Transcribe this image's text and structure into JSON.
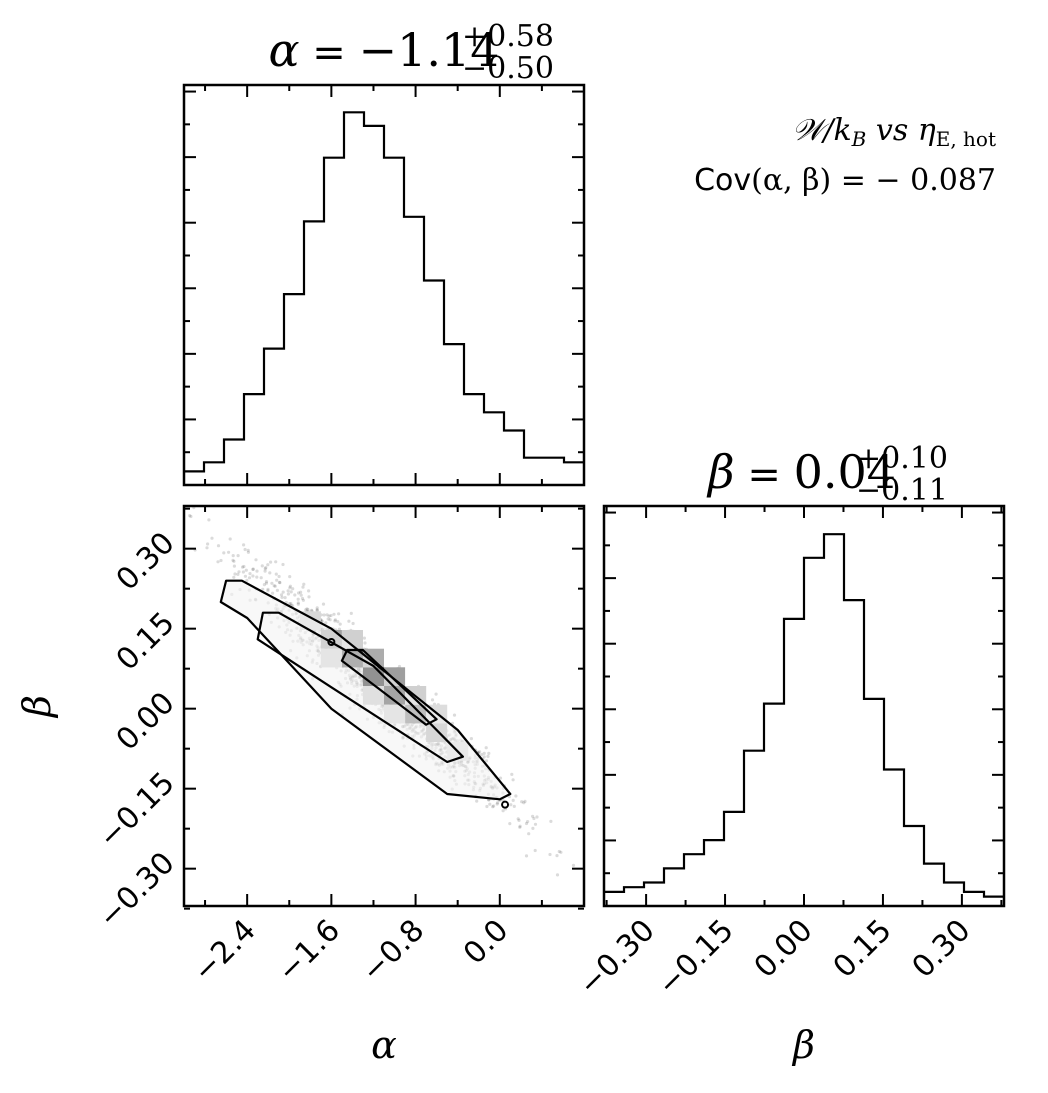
{
  "annotation": {
    "line1": "𝒲/k B  vs  η E, hot",
    "line1_main": "𝒲/k",
    "line1_sub1": "B",
    "line1_mid": " vs η",
    "line1_sub2": "E, hot",
    "line2_prefix": "Cov",
    "line2_rest": "(α, β) = − 0.087"
  },
  "chart_data": [
    {
      "type": "histogram",
      "panel": "alpha-marginal",
      "title_param": "α",
      "title_median": "−1.14",
      "title_plus": "+0.58",
      "title_minus": "−0.50",
      "xlim": [
        -3.0,
        0.8
      ],
      "bin_edges": [
        -3.0,
        -2.81,
        -2.62,
        -2.43,
        -2.24,
        -2.05,
        -1.86,
        -1.67,
        -1.48,
        -1.29,
        -1.1,
        -0.91,
        -0.72,
        -0.53,
        -0.34,
        -0.15,
        0.04,
        0.23,
        0.42,
        0.61,
        0.8
      ],
      "counts": [
        3,
        5,
        10,
        20,
        30,
        42,
        58,
        72,
        82,
        79,
        72,
        59,
        45,
        31,
        20,
        16,
        12,
        6,
        6,
        5
      ],
      "ylim": [
        0,
        88
      ]
    },
    {
      "type": "histogram",
      "panel": "beta-marginal",
      "title_param": "β",
      "title_median": "0.04",
      "title_plus": "+0.10",
      "title_minus": "−0.11",
      "xlabel": "β",
      "xlim": [
        -0.38,
        0.38
      ],
      "xticks": [
        "−0.30",
        "−0.15",
        "0.00",
        "0.15",
        "0.30"
      ],
      "xtick_values": [
        -0.3,
        -0.15,
        0.0,
        0.15,
        0.3
      ],
      "bin_edges": [
        -0.38,
        -0.342,
        -0.304,
        -0.266,
        -0.228,
        -0.19,
        -0.152,
        -0.114,
        -0.076,
        -0.038,
        0.0,
        0.038,
        0.076,
        0.114,
        0.152,
        0.19,
        0.228,
        0.266,
        0.304,
        0.342,
        0.38
      ],
      "counts": [
        3,
        4,
        5,
        8,
        11,
        14,
        20,
        33,
        43,
        61,
        74,
        79,
        65,
        44,
        29,
        17,
        9,
        5,
        3,
        2
      ],
      "ylim": [
        0,
        85
      ]
    },
    {
      "type": "scatter",
      "panel": "alpha-beta-joint",
      "xlabel": "α",
      "ylabel": "β",
      "xlim": [
        -3.0,
        0.8
      ],
      "ylim": [
        -0.37,
        0.38
      ],
      "xticks": [
        "−2.4",
        "−1.6",
        "−0.8",
        "0.0"
      ],
      "xtick_values": [
        -2.4,
        -1.6,
        -0.8,
        0.0
      ],
      "yticks": [
        "−0.30",
        "−0.15",
        "0.00",
        "0.15",
        "0.30"
      ],
      "ytick_values": [
        -0.3,
        -0.15,
        0.0,
        0.15,
        0.3
      ],
      "correlation_slope": -0.175,
      "correlation_intercept": -0.16,
      "hist2d_cells": [
        {
          "x": -1.6,
          "y": 0.13,
          "level": 0.35
        },
        {
          "x": -1.4,
          "y": 0.095,
          "level": 0.7
        },
        {
          "x": -1.2,
          "y": 0.06,
          "level": 1.0
        },
        {
          "x": -1.0,
          "y": 0.025,
          "level": 0.8
        },
        {
          "x": -0.8,
          "y": -0.01,
          "level": 0.55
        },
        {
          "x": -0.6,
          "y": -0.045,
          "level": 0.3
        },
        {
          "x": -1.8,
          "y": 0.165,
          "level": 0.12
        },
        {
          "x": -0.4,
          "y": -0.08,
          "level": 0.1
        },
        {
          "x": -1.6,
          "y": 0.095,
          "level": 0.15
        },
        {
          "x": -1.4,
          "y": 0.13,
          "level": 0.15
        },
        {
          "x": -1.2,
          "y": 0.095,
          "level": 0.3
        },
        {
          "x": -1.0,
          "y": 0.06,
          "level": 0.35
        },
        {
          "x": -0.8,
          "y": 0.025,
          "level": 0.15
        },
        {
          "x": -1.2,
          "y": 0.025,
          "level": 0.2
        },
        {
          "x": -1.0,
          "y": -0.01,
          "level": 0.15
        },
        {
          "x": -0.6,
          "y": -0.01,
          "level": 0.1
        }
      ],
      "contour_outer": [
        [
          -2.6,
          0.24
        ],
        [
          -2.45,
          0.24
        ],
        [
          -1.6,
          0.15
        ],
        [
          -0.4,
          -0.04
        ],
        [
          0.1,
          -0.16
        ],
        [
          0.0,
          -0.17
        ],
        [
          -0.5,
          -0.16
        ],
        [
          -1.6,
          0.0
        ],
        [
          -2.4,
          0.17
        ],
        [
          -2.65,
          0.2
        ]
      ],
      "contour_mid": [
        [
          -2.25,
          0.18
        ],
        [
          -2.1,
          0.18
        ],
        [
          -1.2,
          0.08
        ],
        [
          -0.35,
          -0.09
        ],
        [
          -0.5,
          -0.1
        ],
        [
          -1.6,
          0.04
        ],
        [
          -2.3,
          0.13
        ]
      ],
      "contour_inner": [
        [
          -1.45,
          0.11
        ],
        [
          -1.3,
          0.11
        ],
        [
          -0.6,
          -0.02
        ],
        [
          -0.7,
          -0.03
        ],
        [
          -1.5,
          0.09
        ]
      ],
      "contour_islands": [
        [
          -1.6,
          0.125
        ],
        [
          0.05,
          -0.18
        ]
      ]
    }
  ]
}
